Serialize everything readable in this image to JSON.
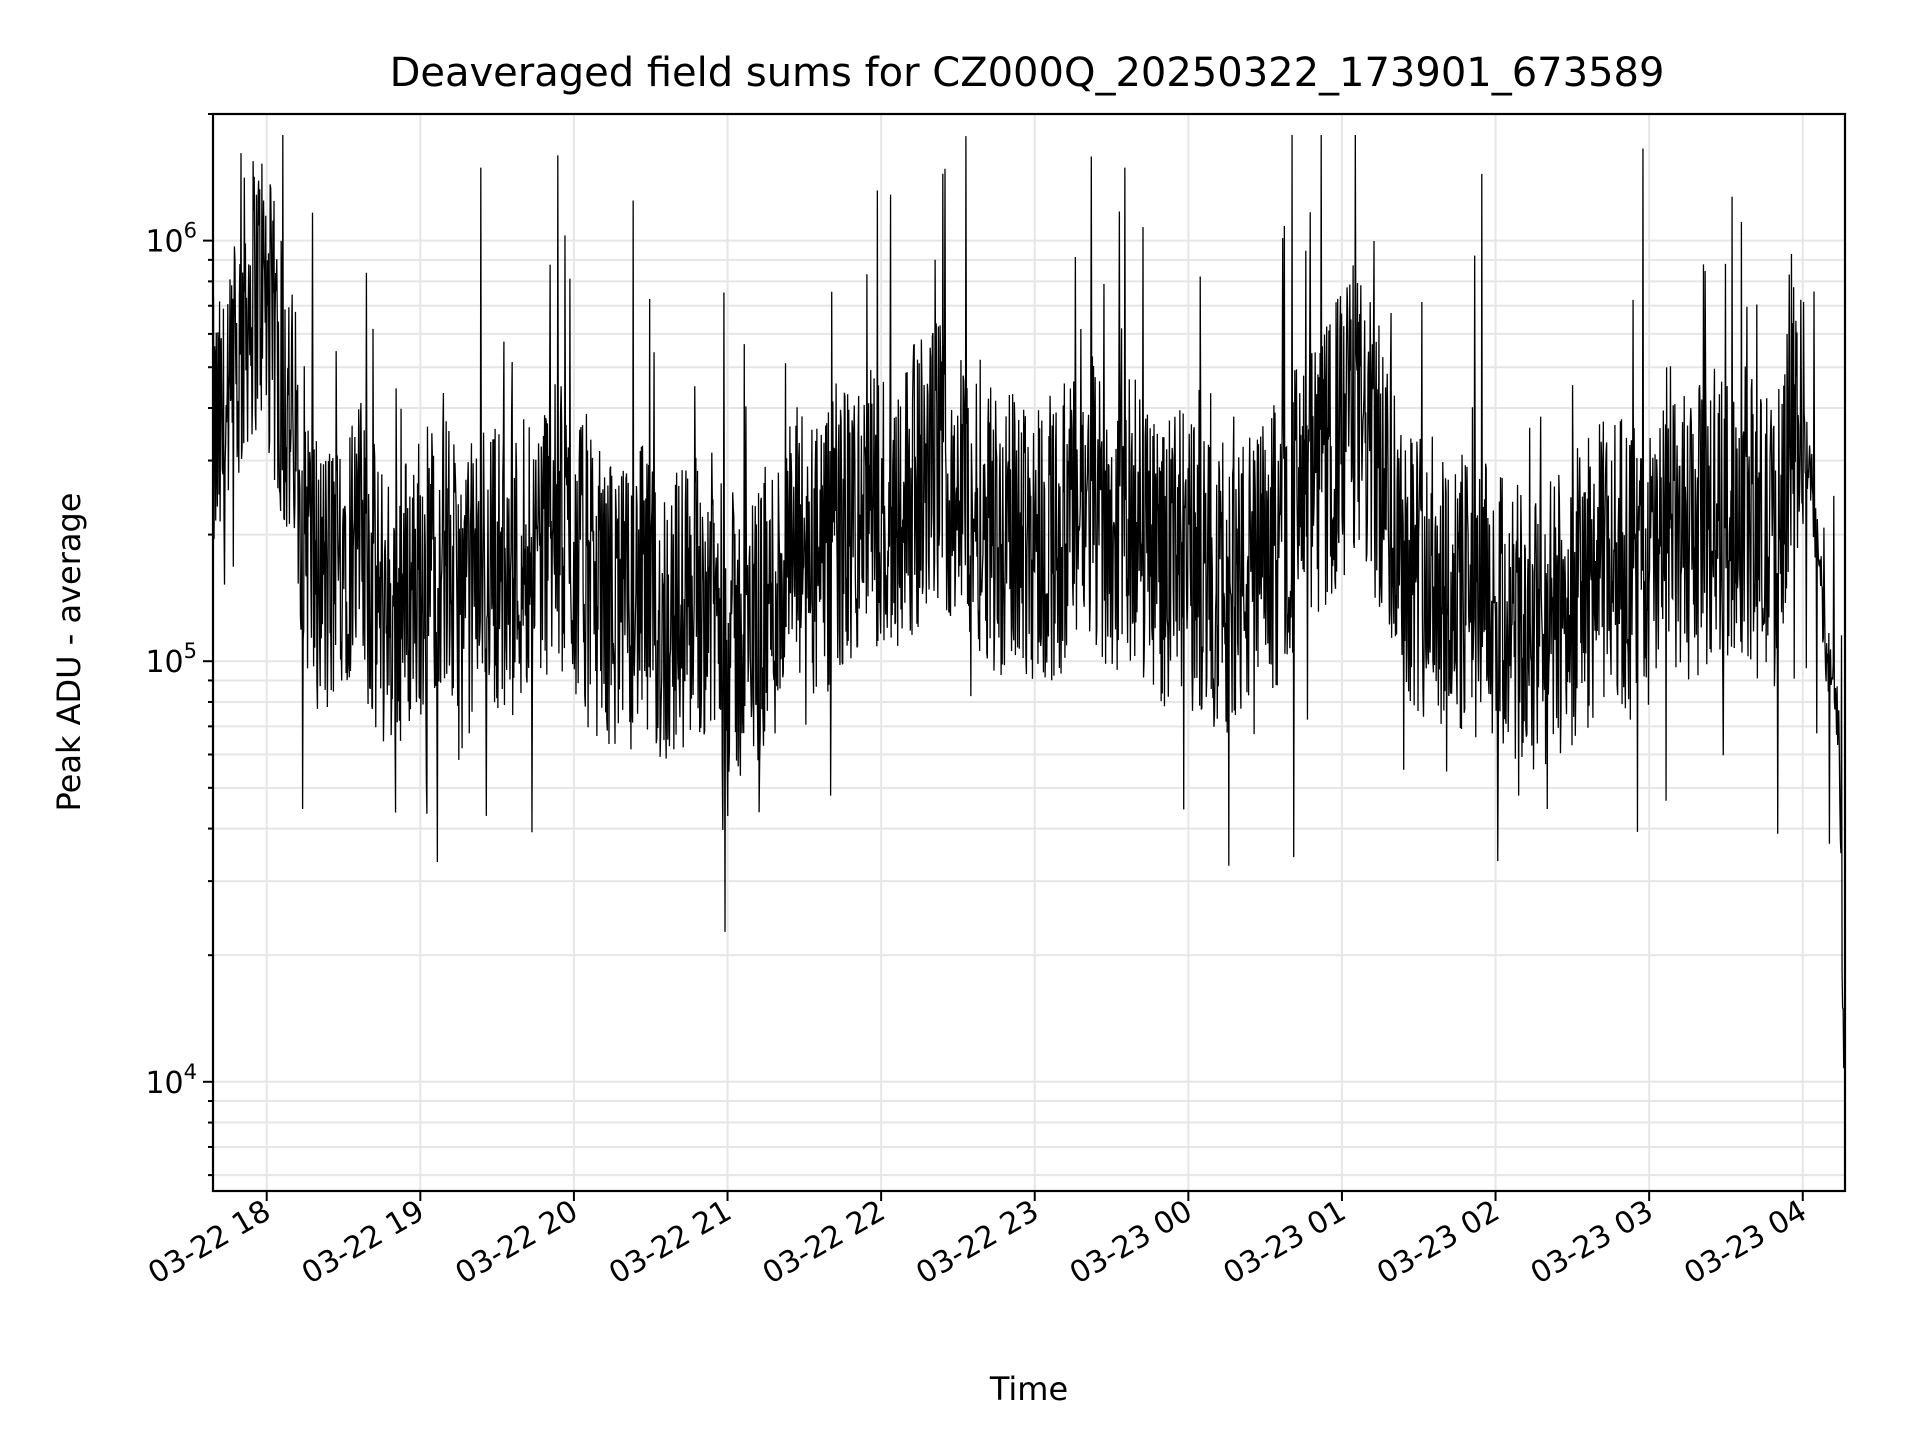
{
  "chart_data": {
    "type": "line",
    "title": "Deaveraged field sums for CZ000Q_20250322_173901_673589",
    "xlabel": "Time",
    "ylabel": "Peak ADU - average",
    "yscale": "log",
    "ylim": [
      5500,
      2000000
    ],
    "xlim": [
      "2025-03-22 17:39:01",
      "2025-03-23 04:16:30"
    ],
    "grid": true,
    "xticks": [
      {
        "value": "2025-03-22 18:00",
        "label": "03-22 18"
      },
      {
        "value": "2025-03-22 19:00",
        "label": "03-22 19"
      },
      {
        "value": "2025-03-22 20:00",
        "label": "03-22 20"
      },
      {
        "value": "2025-03-22 21:00",
        "label": "03-22 21"
      },
      {
        "value": "2025-03-22 22:00",
        "label": "03-22 22"
      },
      {
        "value": "2025-03-22 23:00",
        "label": "03-22 23"
      },
      {
        "value": "2025-03-23 00:00",
        "label": "03-23 00"
      },
      {
        "value": "2025-03-23 01:00",
        "label": "03-23 01"
      },
      {
        "value": "2025-03-23 02:00",
        "label": "03-23 02"
      },
      {
        "value": "2025-03-23 03:00",
        "label": "03-23 03"
      },
      {
        "value": "2025-03-23 04:00",
        "label": "03-23 04"
      }
    ],
    "yticks": [
      {
        "value": 10000,
        "base": "10",
        "exp": "4"
      },
      {
        "value": 100000,
        "base": "10",
        "exp": "5"
      },
      {
        "value": 1000000,
        "base": "10",
        "exp": "6"
      }
    ],
    "series": [
      {
        "color": "#000000",
        "x": [
          "2025-03-22 17:39",
          "2025-03-22 17:45",
          "2025-03-22 17:52",
          "2025-03-22 17:58",
          "2025-03-22 18:05",
          "2025-03-22 18:11",
          "2025-03-22 18:18",
          "2025-03-22 18:24",
          "2025-03-22 18:30",
          "2025-03-22 18:37",
          "2025-03-22 18:43",
          "2025-03-22 18:50",
          "2025-03-22 18:56",
          "2025-03-22 19:03",
          "2025-03-22 19:09",
          "2025-03-22 19:15",
          "2025-03-22 19:22",
          "2025-03-22 19:28",
          "2025-03-22 19:35",
          "2025-03-22 19:41",
          "2025-03-22 19:48",
          "2025-03-22 19:54",
          "2025-03-22 20:00",
          "2025-03-22 20:07",
          "2025-03-22 20:13",
          "2025-03-22 20:20",
          "2025-03-22 20:26",
          "2025-03-22 20:33",
          "2025-03-22 20:39",
          "2025-03-22 20:45",
          "2025-03-22 20:52",
          "2025-03-22 20:58",
          "2025-03-22 21:05",
          "2025-03-22 21:11",
          "2025-03-22 21:18",
          "2025-03-22 21:24",
          "2025-03-22 21:30",
          "2025-03-22 21:37",
          "2025-03-22 21:43",
          "2025-03-22 21:50",
          "2025-03-22 21:56",
          "2025-03-22 22:03",
          "2025-03-22 22:09",
          "2025-03-22 22:15",
          "2025-03-22 22:22",
          "2025-03-22 22:28",
          "2025-03-22 22:35",
          "2025-03-22 22:41",
          "2025-03-22 22:48",
          "2025-03-22 22:54",
          "2025-03-22 23:00",
          "2025-03-22 23:07",
          "2025-03-22 23:13",
          "2025-03-22 23:20",
          "2025-03-22 23:26",
          "2025-03-22 23:33",
          "2025-03-22 23:39",
          "2025-03-22 23:45",
          "2025-03-22 23:52",
          "2025-03-22 23:58",
          "2025-03-23 00:05",
          "2025-03-23 00:11",
          "2025-03-23 00:18",
          "2025-03-23 00:24",
          "2025-03-23 00:30",
          "2025-03-23 00:37",
          "2025-03-23 00:43",
          "2025-03-23 00:50",
          "2025-03-23 00:56",
          "2025-03-23 01:03",
          "2025-03-23 01:09",
          "2025-03-23 01:15",
          "2025-03-23 01:22",
          "2025-03-23 01:28",
          "2025-03-23 01:35",
          "2025-03-23 01:41",
          "2025-03-23 01:48",
          "2025-03-23 01:54",
          "2025-03-23 02:00",
          "2025-03-23 02:07",
          "2025-03-23 02:13",
          "2025-03-23 02:20",
          "2025-03-23 02:26",
          "2025-03-23 02:33",
          "2025-03-23 02:39",
          "2025-03-23 02:45",
          "2025-03-23 02:52",
          "2025-03-23 02:58",
          "2025-03-23 03:05",
          "2025-03-23 03:11",
          "2025-03-23 03:18",
          "2025-03-23 03:24",
          "2025-03-23 03:30",
          "2025-03-23 03:37",
          "2025-03-23 03:43",
          "2025-03-23 03:50",
          "2025-03-23 03:56",
          "2025-03-23 04:03",
          "2025-03-23 04:09",
          "2025-03-23 04:14",
          "2025-03-23 04:16"
        ],
        "values": [
          330000,
          340000,
          700000,
          800000,
          480000,
          330000,
          170000,
          150000,
          200000,
          190000,
          140000,
          130000,
          150000,
          170000,
          200000,
          130000,
          160000,
          180000,
          150000,
          190000,
          200000,
          210000,
          180000,
          150000,
          140000,
          130000,
          150000,
          120000,
          130000,
          140000,
          150000,
          120000,
          110000,
          120000,
          140000,
          170000,
          190000,
          160000,
          200000,
          210000,
          230000,
          220000,
          250000,
          260000,
          300000,
          270000,
          240000,
          230000,
          190000,
          210000,
          200000,
          190000,
          210000,
          230000,
          220000,
          200000,
          220000,
          190000,
          170000,
          180000,
          160000,
          150000,
          150000,
          160000,
          170000,
          200000,
          240000,
          260000,
          300000,
          420000,
          350000,
          280000,
          210000,
          170000,
          160000,
          150000,
          140000,
          140000,
          130000,
          120000,
          110000,
          120000,
          130000,
          150000,
          160000,
          180000,
          170000,
          160000,
          180000,
          190000,
          200000,
          210000,
          220000,
          230000,
          200000,
          190000,
          450000,
          280000,
          110000,
          70000,
          12000
        ]
      }
    ]
  }
}
